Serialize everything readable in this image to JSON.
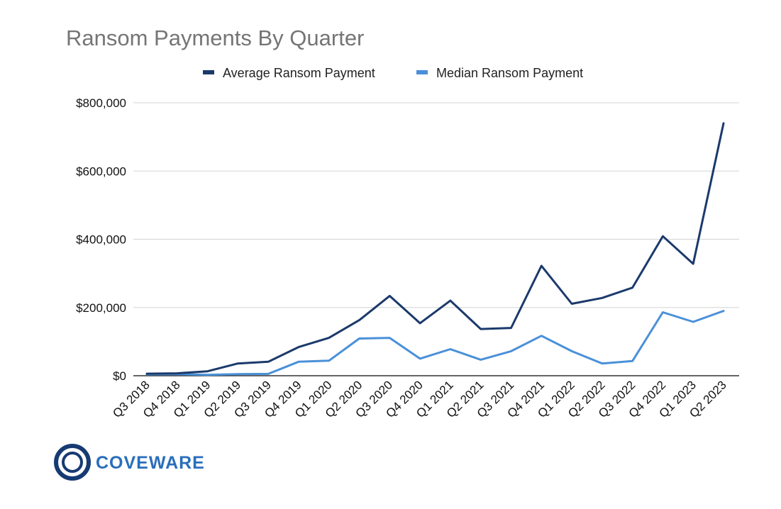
{
  "chart_data": {
    "type": "line",
    "title": "Ransom Payments By Quarter",
    "categories": [
      "Q3 2018",
      "Q4 2018",
      "Q1 2019",
      "Q2 2019",
      "Q3 2019",
      "Q4 2019",
      "Q1 2020",
      "Q2 2020",
      "Q3 2020",
      "Q4 2020",
      "Q1 2021",
      "Q2 2021",
      "Q3 2021",
      "Q4 2021",
      "Q1 2022",
      "Q2 2022",
      "Q3 2022",
      "Q4 2022",
      "Q1 2023",
      "Q2 2023"
    ],
    "series": [
      {
        "name": "Average Ransom Payment",
        "color": "#1b3a6b",
        "values": [
          6000,
          7000,
          13000,
          36000,
          41000,
          84000,
          111000,
          163000,
          234000,
          154000,
          220000,
          137000,
          140000,
          322000,
          211000,
          228000,
          258000,
          409000,
          328000,
          740000
        ]
      },
      {
        "name": "Median Ransom Payment",
        "color": "#4a90d9",
        "values": [
          4000,
          4500,
          2500,
          4500,
          5500,
          41000,
          44000,
          109000,
          111000,
          50000,
          78000,
          47000,
          72000,
          117000,
          72000,
          36000,
          43000,
          186000,
          158000,
          190000
        ]
      }
    ],
    "yticks": [
      "$800,000",
      "$600,000",
      "$400,000",
      "$200,000",
      "$0"
    ],
    "ytick_values": [
      800000,
      600000,
      400000,
      200000,
      0
    ],
    "ylim": [
      0,
      800000
    ],
    "grid": true,
    "legend_position": "top"
  },
  "logo": {
    "text": "COVEWARE",
    "color": "#2a6ebb",
    "ring_color": "#173a73"
  }
}
